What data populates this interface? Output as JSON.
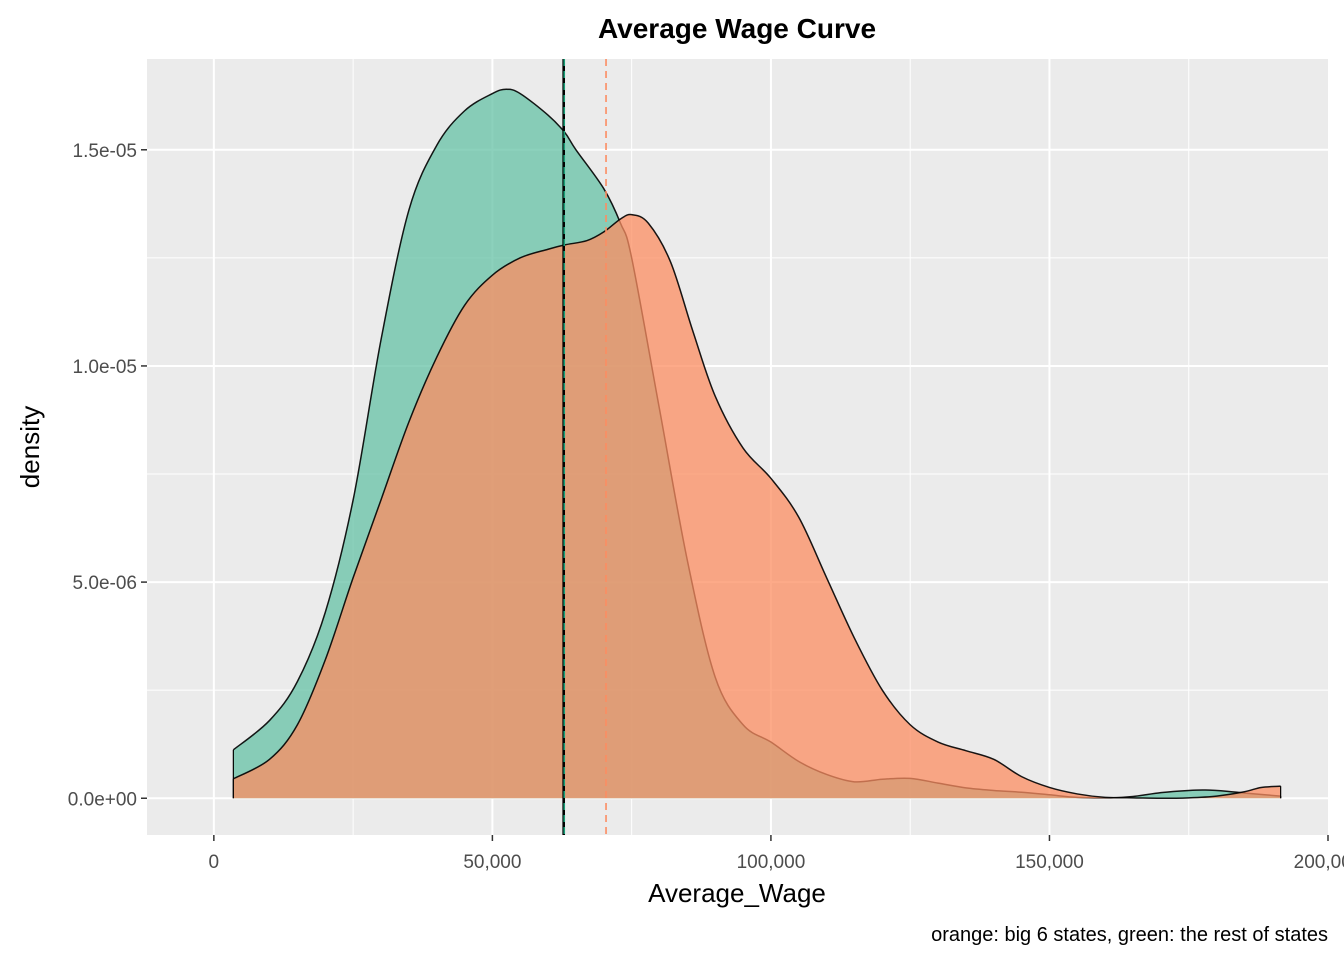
{
  "chart_data": {
    "type": "area",
    "title": "Average Wage Curve",
    "xlabel": "Average_Wage",
    "ylabel": "density",
    "caption": "orange: big 6 states, green: the rest of states",
    "xlim": [
      -12000,
      200000
    ],
    "ylim": [
      -8.5e-07,
      1.71e-05
    ],
    "x_ticks": [
      0,
      50000,
      100000,
      150000,
      200000
    ],
    "x_tick_labels": [
      "0",
      "50,000",
      "100,000",
      "150,000",
      "200,000"
    ],
    "y_ticks": [
      0,
      5e-06,
      1e-05,
      1.5e-05
    ],
    "y_tick_labels": [
      "0.0e+00",
      "5.0e-06",
      "1.0e-05",
      "1.5e-05"
    ],
    "grid": true,
    "series": [
      {
        "color": "#66c2a5",
        "points": [
          [
            3500,
            1.12e-06
          ],
          [
            10000,
            1.8e-06
          ],
          [
            15000,
            2.7e-06
          ],
          [
            20000,
            4.3e-06
          ],
          [
            25000,
            6.9e-06
          ],
          [
            30000,
            1.06e-05
          ],
          [
            35000,
            1.36e-05
          ],
          [
            40000,
            1.51e-05
          ],
          [
            45000,
            1.59e-05
          ],
          [
            50000,
            1.63e-05
          ],
          [
            52500,
            1.64e-05
          ],
          [
            55000,
            1.63e-05
          ],
          [
            60000,
            1.58e-05
          ],
          [
            63000,
            1.54e-05
          ],
          [
            65000,
            1.5e-05
          ],
          [
            70000,
            1.41e-05
          ],
          [
            73000,
            1.33e-05
          ],
          [
            75000,
            1.25e-05
          ],
          [
            80000,
            9e-06
          ],
          [
            85000,
            5.5e-06
          ],
          [
            90000,
            2.8e-06
          ],
          [
            95000,
            1.7e-06
          ],
          [
            100000,
            1.3e-06
          ],
          [
            105000,
            8.5e-07
          ],
          [
            110000,
            5.5e-07
          ],
          [
            115000,
            3.8e-07
          ],
          [
            120000,
            4.4e-07
          ],
          [
            125000,
            4.6e-07
          ],
          [
            130000,
            3.5e-07
          ],
          [
            135000,
            2.4e-07
          ],
          [
            140000,
            1.8e-07
          ],
          [
            145000,
            1.4e-07
          ],
          [
            150000,
            8e-08
          ],
          [
            155000,
            2e-08
          ],
          [
            161000,
            1e-08
          ],
          [
            165000,
            4e-08
          ],
          [
            170000,
            1.3e-07
          ],
          [
            175000,
            1.8e-07
          ],
          [
            178000,
            1.9e-07
          ],
          [
            182000,
            1.6e-07
          ],
          [
            186000,
            1.1e-07
          ],
          [
            191500,
            5e-08
          ]
        ]
      },
      {
        "color": "#fc8d62",
        "points": [
          [
            3500,
            4.5e-07
          ],
          [
            10000,
            9e-07
          ],
          [
            15000,
            1.7e-06
          ],
          [
            20000,
            3.2e-06
          ],
          [
            25000,
            5.1e-06
          ],
          [
            30000,
            6.9e-06
          ],
          [
            35000,
            8.7e-06
          ],
          [
            40000,
            1.02e-05
          ],
          [
            45000,
            1.14e-05
          ],
          [
            50000,
            1.21e-05
          ],
          [
            55000,
            1.25e-05
          ],
          [
            60000,
            1.27e-05
          ],
          [
            63000,
            1.28e-05
          ],
          [
            67000,
            1.29e-05
          ],
          [
            70000,
            1.31e-05
          ],
          [
            73000,
            1.34e-05
          ],
          [
            75000,
            1.35e-05
          ],
          [
            78000,
            1.33e-05
          ],
          [
            82000,
            1.24e-05
          ],
          [
            86000,
            1.08e-05
          ],
          [
            90000,
            9.3e-06
          ],
          [
            95000,
            8.1e-06
          ],
          [
            100000,
            7.4e-06
          ],
          [
            105000,
            6.5e-06
          ],
          [
            110000,
            5.1e-06
          ],
          [
            115000,
            3.7e-06
          ],
          [
            120000,
            2.5e-06
          ],
          [
            125000,
            1.7e-06
          ],
          [
            130000,
            1.3e-06
          ],
          [
            135000,
            1.1e-06
          ],
          [
            140000,
            9e-07
          ],
          [
            145000,
            5e-07
          ],
          [
            150000,
            2.5e-07
          ],
          [
            155000,
            1e-07
          ],
          [
            160000,
            2e-08
          ],
          [
            165000,
            1e-08
          ],
          [
            170000,
            0
          ],
          [
            175000,
            1e-08
          ],
          [
            180000,
            5e-08
          ],
          [
            185000,
            1.5e-07
          ],
          [
            188000,
            2.5e-07
          ],
          [
            191500,
            2.8e-07
          ]
        ]
      }
    ],
    "vlines": [
      {
        "x": 62800,
        "color": "#000000",
        "style": "solid"
      },
      {
        "x": 62900,
        "color": "#1b9e77",
        "style": "dashed"
      },
      {
        "x": 70400,
        "color": "#fc8d62",
        "style": "dashed"
      }
    ]
  }
}
